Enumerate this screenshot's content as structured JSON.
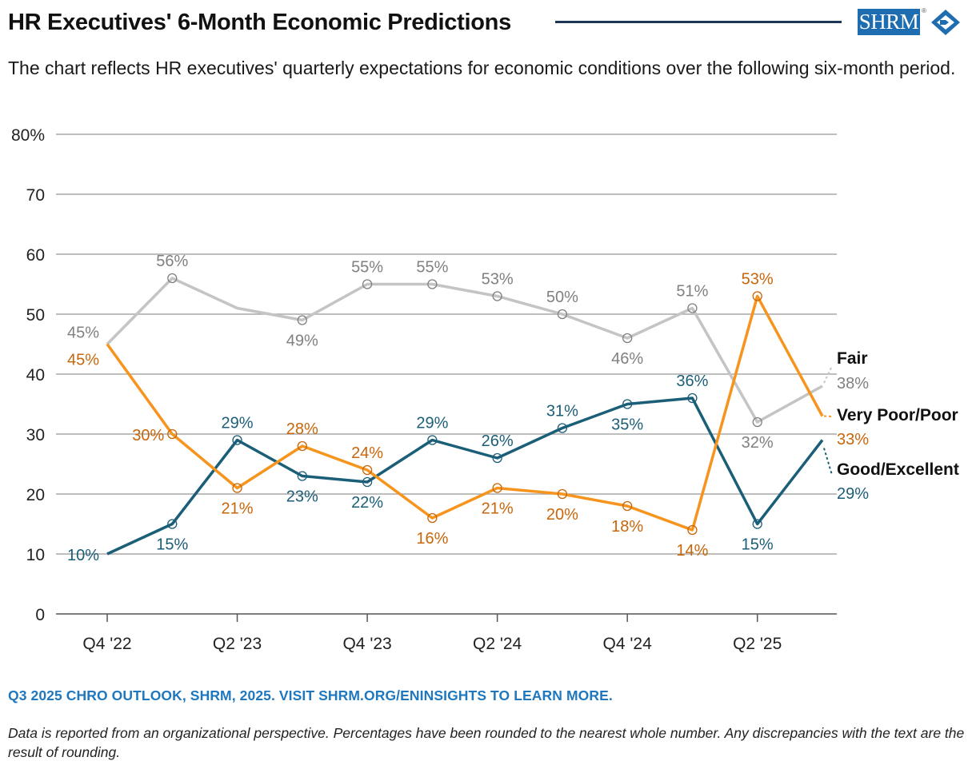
{
  "header": {
    "title": "HR Executives' 6-Month Economic Predictions",
    "subtitle": "The chart reflects HR executives' quarterly expectations for economic conditions over the following six-month period.",
    "logo_text": "SHRM",
    "logo_registered": "®"
  },
  "footer": {
    "source": "Q3 2025 CHRO OUTLOOK, SHRM, 2025. VISIT SHRM.ORG/ENINSIGHTS TO LEARN MORE.",
    "note": "Data is reported from an organizational perspective. Percentages have been rounded to the nearest whole number. Any discrepancies with the text are the result of rounding."
  },
  "colors": {
    "fair": "#c4c4c4",
    "fair_label": "#808080",
    "poor": "#f7941d",
    "poor_label": "#c8660a",
    "good": "#1b5e78",
    "good_label": "#1b5e78",
    "grid": "#a8a8a8",
    "brand": "#1f6db1",
    "rule": "#1d3557"
  },
  "chart_data": {
    "type": "line",
    "ylim": [
      0,
      80
    ],
    "y_ticks": [
      0,
      10,
      20,
      30,
      40,
      50,
      60,
      70,
      80
    ],
    "y_tick_labels": [
      "0",
      "10",
      "20",
      "30",
      "40",
      "50",
      "60",
      "70",
      "80%"
    ],
    "categories": [
      "Q4 '22",
      "Q1 '23",
      "Q2 '23",
      "Q3 '23",
      "Q4 '23",
      "Q1 '24",
      "Q2 '24",
      "Q3 '24",
      "Q4 '24",
      "Q1 '25",
      "Q2 '25",
      "Q3 '25"
    ],
    "x_tick_labels": [
      "Q4 '22",
      "",
      "Q2 '23",
      "",
      "Q4 '23",
      "",
      "Q2 '24",
      "",
      "Q4 '24",
      "",
      "Q2 '25",
      ""
    ],
    "grid": true,
    "series": [
      {
        "name": "Fair",
        "key": "fair",
        "values": [
          45,
          56,
          51,
          49,
          55,
          55,
          53,
          50,
          46,
          51,
          32,
          38
        ],
        "labels": [
          "45%",
          "56%",
          "",
          "49%",
          "55%",
          "55%",
          "53%",
          "50%",
          "46%",
          "51%",
          "32%",
          "38%"
        ]
      },
      {
        "name": "Very Poor/Poor",
        "key": "poor",
        "values": [
          45,
          30,
          21,
          28,
          24,
          16,
          21,
          20,
          18,
          14,
          53,
          33
        ],
        "labels": [
          "45%",
          "30%",
          "21%",
          "28%",
          "24%",
          "16%",
          "21%",
          "20%",
          "18%",
          "14%",
          "53%",
          "33%"
        ]
      },
      {
        "name": "Good/Excellent",
        "key": "good",
        "values": [
          10,
          15,
          29,
          23,
          22,
          29,
          26,
          31,
          35,
          36,
          15,
          29
        ],
        "labels": [
          "10%",
          "15%",
          "29%",
          "23%",
          "22%",
          "29%",
          "26%",
          "31%",
          "35%",
          "36%",
          "15%",
          "29%"
        ]
      }
    ]
  }
}
